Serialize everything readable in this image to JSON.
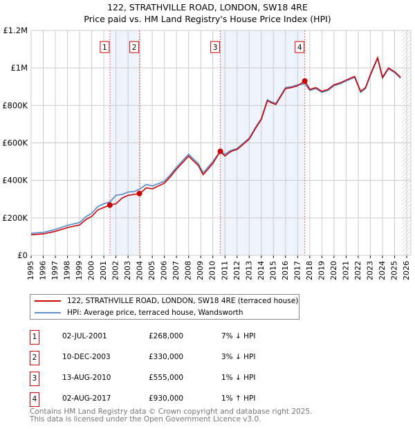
{
  "title": {
    "line1": "122, STRATHVILLE ROAD, LONDON, SW18 4RE",
    "line2": "Price paid vs. HM Land Registry's House Price Index (HPI)"
  },
  "colors": {
    "price": "#cc0000",
    "hpi": "#6090d0",
    "shade": "#eef3fc",
    "grid": "#cccccc"
  },
  "legend": {
    "price": "122, STRATHVILLE ROAD, LONDON, SW18 4RE (terraced house)",
    "hpi": "HPI: Average price, terraced house, Wandsworth"
  },
  "sales": [
    {
      "n": "1",
      "date": "02-JUL-2001",
      "price": "£268,000",
      "hpi": "7% ↓ HPI"
    },
    {
      "n": "2",
      "date": "10-DEC-2003",
      "price": "£330,000",
      "hpi": "3% ↓ HPI"
    },
    {
      "n": "3",
      "date": "13-AUG-2010",
      "price": "£555,000",
      "hpi": "1% ↓ HPI"
    },
    {
      "n": "4",
      "date": "02-AUG-2017",
      "price": "£930,000",
      "hpi": "1% ↑ HPI"
    }
  ],
  "footer": {
    "line1": "Contains HM Land Registry data © Crown copyright and database right 2025.",
    "line2": "This data is licensed under the Open Government Licence v3.0."
  },
  "chart_data": {
    "type": "line",
    "xlim": [
      1995,
      2026
    ],
    "ylim": [
      0,
      1200000
    ],
    "yticks": [
      {
        "v": 0,
        "label": "£0"
      },
      {
        "v": 200000,
        "label": "£200K"
      },
      {
        "v": 400000,
        "label": "£400K"
      },
      {
        "v": 600000,
        "label": "£600K"
      },
      {
        "v": 800000,
        "label": "£800K"
      },
      {
        "v": 1000000,
        "label": "£1M"
      },
      {
        "v": 1200000,
        "label": "£1.2M"
      }
    ],
    "xticks": [
      1995,
      1996,
      1997,
      1998,
      1999,
      2000,
      2001,
      2002,
      2003,
      2004,
      2005,
      2006,
      2007,
      2008,
      2009,
      2010,
      2011,
      2012,
      2013,
      2014,
      2015,
      2016,
      2017,
      2018,
      2019,
      2020,
      2021,
      2022,
      2023,
      2024,
      2025,
      2026
    ],
    "sale_points": [
      {
        "label": "1",
        "x": 2001.5,
        "y": 268000
      },
      {
        "label": "2",
        "x": 2003.94,
        "y": 330000
      },
      {
        "label": "3",
        "x": 2010.62,
        "y": 555000
      },
      {
        "label": "4",
        "x": 2017.59,
        "y": 930000
      }
    ],
    "series": [
      {
        "name": "HPI: Average price, terraced house, Wandsworth",
        "x": [
          1995,
          1996,
          1997,
          1998,
          1999,
          1999.5,
          2000,
          2000.5,
          2001,
          2001.5,
          2002,
          2002.5,
          2003,
          2003.5,
          2004,
          2004.5,
          2005,
          2006,
          2006.5,
          2007,
          2007.5,
          2008,
          2008.3,
          2008.8,
          2009.2,
          2010,
          2010.6,
          2011,
          2011.5,
          2012,
          2013,
          2013.5,
          2014,
          2014.5,
          2014.8,
          2015.2,
          2016,
          2016.5,
          2017,
          2017.6,
          2018,
          2018.5,
          2019,
          2019.5,
          2020,
          2020.5,
          2021,
          2021.7,
          2022.2,
          2022.6,
          2023,
          2023.6,
          2024,
          2024.5,
          2025,
          2025.5
        ],
        "y": [
          118000,
          122000,
          138000,
          160000,
          175000,
          205000,
          225000,
          260000,
          275000,
          285000,
          320000,
          325000,
          338000,
          340000,
          355000,
          378000,
          370000,
          395000,
          430000,
          470000,
          505000,
          540000,
          520000,
          490000,
          440000,
          500000,
          555000,
          540000,
          560000,
          570000,
          625000,
          680000,
          730000,
          830000,
          820000,
          810000,
          895000,
          900000,
          910000,
          915000,
          880000,
          890000,
          870000,
          880000,
          905000,
          915000,
          930000,
          950000,
          870000,
          890000,
          960000,
          1050000,
          945000,
          995000,
          975000,
          945000
        ]
      },
      {
        "name": "122, STRATHVILLE ROAD, LONDON, SW18 4RE (terraced house)",
        "x": [
          1995,
          1996,
          1997,
          1998,
          1999,
          1999.5,
          2000,
          2000.5,
          2001,
          2001.5,
          2002,
          2002.5,
          2003,
          2003.5,
          2004,
          2004.5,
          2005,
          2006,
          2006.5,
          2007,
          2007.5,
          2008,
          2008.3,
          2008.8,
          2009.2,
          2010,
          2010.6,
          2011,
          2011.5,
          2012,
          2013,
          2013.5,
          2014,
          2014.5,
          2014.8,
          2015.2,
          2016,
          2016.5,
          2017,
          2017.6,
          2018,
          2018.5,
          2019,
          2019.5,
          2020,
          2020.5,
          2021,
          2021.7,
          2022.2,
          2022.6,
          2023,
          2023.6,
          2024,
          2024.5,
          2025,
          2025.5
        ],
        "y": [
          110000,
          114000,
          128000,
          148000,
          162000,
          190000,
          208000,
          242000,
          255000,
          268000,
          275000,
          305000,
          320000,
          325000,
          330000,
          360000,
          355000,
          385000,
          420000,
          460000,
          495000,
          530000,
          510000,
          480000,
          430000,
          490000,
          555000,
          530000,
          555000,
          565000,
          620000,
          675000,
          725000,
          825000,
          815000,
          805000,
          890000,
          895000,
          905000,
          930000,
          885000,
          895000,
          875000,
          885000,
          910000,
          920000,
          935000,
          955000,
          875000,
          895000,
          965000,
          1055000,
          950000,
          1000000,
          980000,
          950000
        ]
      }
    ]
  }
}
